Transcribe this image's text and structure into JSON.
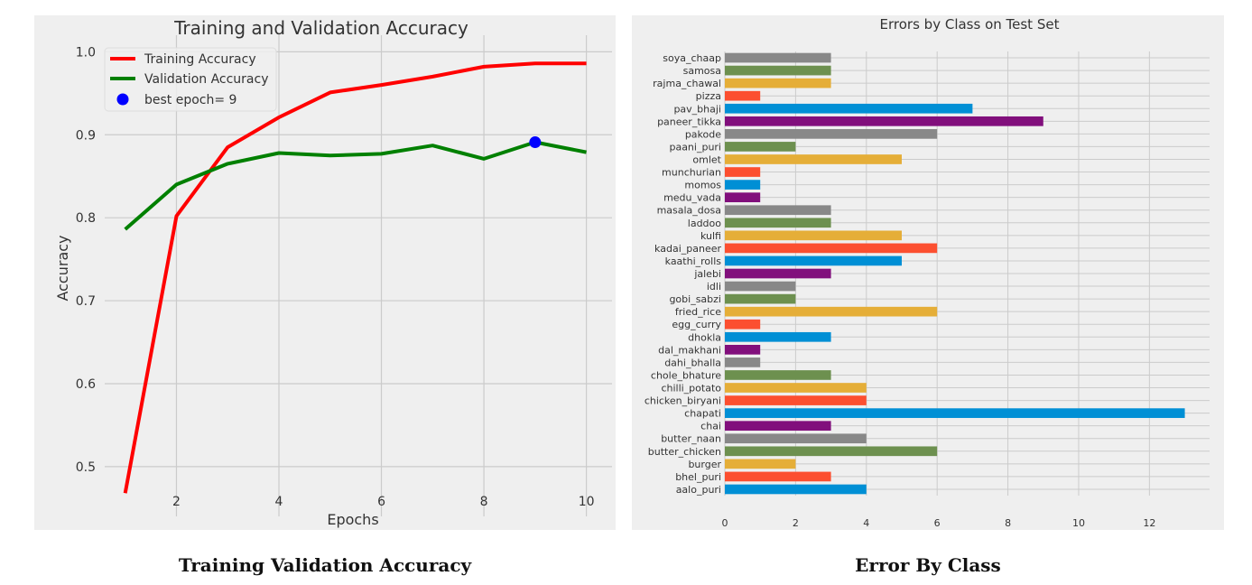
{
  "captions": {
    "left": "Training Validation Accuracy",
    "right": "Error By Class"
  },
  "chart_data": [
    {
      "type": "line",
      "title": "Training and Validation Accuracy",
      "xlabel": "Epochs",
      "ylabel": "Accuracy",
      "x": [
        1,
        2,
        3,
        4,
        5,
        6,
        7,
        8,
        9,
        10
      ],
      "xticks": [
        2,
        4,
        6,
        8,
        10
      ],
      "yticks": [
        0.5,
        0.6,
        0.7,
        0.8,
        0.9,
        1.0
      ],
      "xlim": [
        0.6,
        10.5
      ],
      "ylim": [
        0.44,
        1.02
      ],
      "grid": true,
      "legend_position": "upper-left",
      "series": [
        {
          "name": "Training Accuracy",
          "color": "#ff0000",
          "values": [
            0.468,
            0.802,
            0.885,
            0.921,
            0.951,
            0.96,
            0.97,
            0.982,
            0.986,
            0.986
          ]
        },
        {
          "name": "Validation Accuracy",
          "color": "#008000",
          "values": [
            0.786,
            0.84,
            0.865,
            0.878,
            0.875,
            0.877,
            0.887,
            0.871,
            0.891,
            0.879
          ]
        }
      ],
      "marker": {
        "name": "best epoch= 9",
        "x": 9,
        "y": 0.891,
        "color": "#0000ff"
      }
    },
    {
      "type": "bar",
      "orientation": "horizontal",
      "title": "Errors by Class on Test Set",
      "xticks": [
        0,
        2,
        4,
        6,
        8,
        10,
        12
      ],
      "xlim": [
        0,
        13.7
      ],
      "grid": true,
      "categories": [
        "soya_chaap",
        "samosa",
        "rajma_chawal",
        "pizza",
        "pav_bhaji",
        "paneer_tikka",
        "pakode",
        "paani_puri",
        "omlet",
        "munchurian",
        "momos",
        "medu_vada",
        "masala_dosa",
        "laddoo",
        "kulfi",
        "kadai_paneer",
        "kaathi_rolls",
        "jalebi",
        "idli",
        "gobi_sabzi",
        "fried_rice",
        "egg_curry",
        "dhokla",
        "dal_makhani",
        "dahi_bhalla",
        "chole_bhature",
        "chilli_potato",
        "chicken_biryani",
        "chapati",
        "chai",
        "butter_naan",
        "butter_chicken",
        "burger",
        "bhel_puri",
        "aalo_puri"
      ],
      "values": [
        3,
        3,
        3,
        1,
        7,
        9,
        6,
        2,
        5,
        1,
        1,
        1,
        3,
        3,
        5,
        6,
        5,
        3,
        2,
        2,
        6,
        1,
        3,
        1,
        1,
        3,
        4,
        4,
        13,
        3,
        4,
        6,
        2,
        3,
        4
      ],
      "colors": [
        "#888888",
        "#6d904f",
        "#e5ae38",
        "#fc4f30",
        "#008fd5",
        "#810f7c",
        "#888888",
        "#6d904f",
        "#e5ae38",
        "#fc4f30",
        "#008fd5",
        "#810f7c",
        "#888888",
        "#6d904f",
        "#e5ae38",
        "#fc4f30",
        "#008fd5",
        "#810f7c",
        "#888888",
        "#6d904f",
        "#e5ae38",
        "#fc4f30",
        "#008fd5",
        "#810f7c",
        "#888888",
        "#6d904f",
        "#e5ae38",
        "#fc4f30",
        "#008fd5",
        "#810f7c",
        "#888888",
        "#6d904f",
        "#e5ae38",
        "#fc4f30",
        "#008fd5"
      ]
    }
  ]
}
